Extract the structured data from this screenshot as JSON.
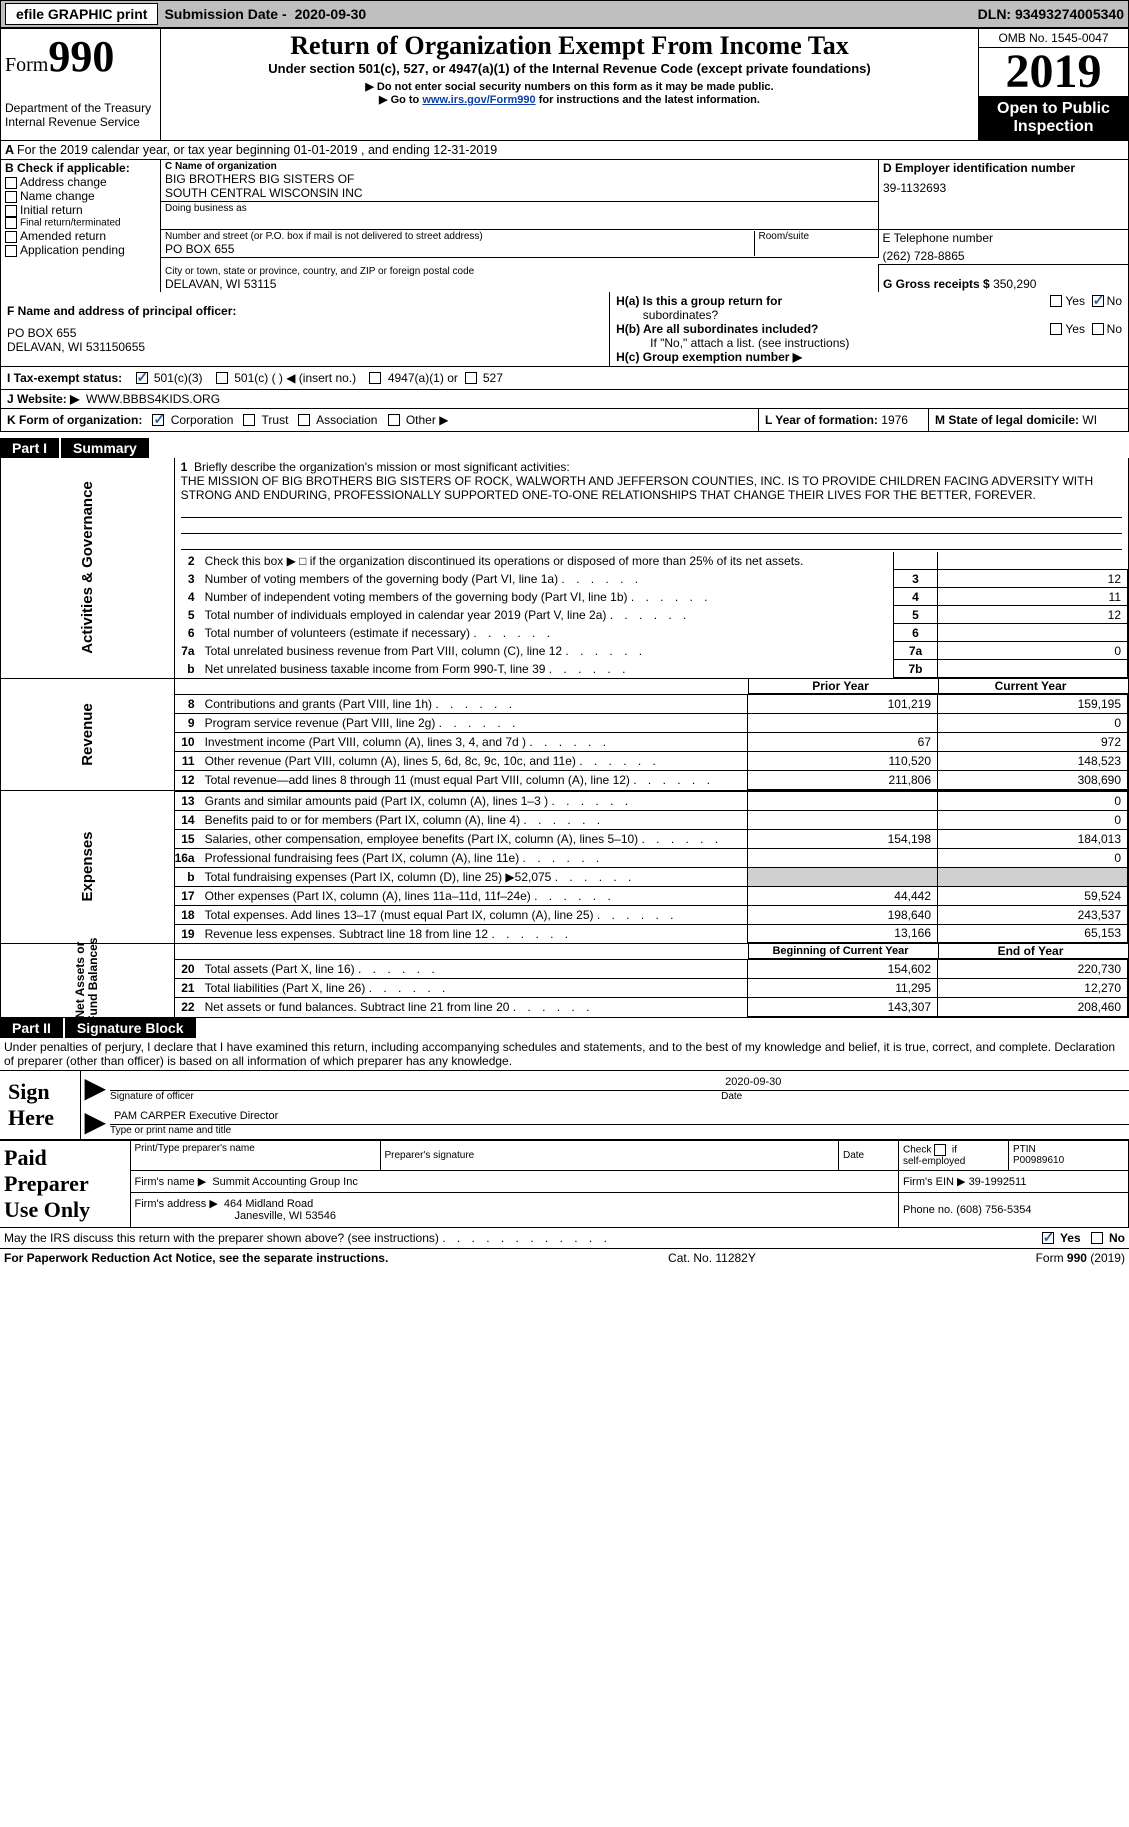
{
  "topbar": {
    "efile": "efile GRAPHIC print",
    "subm_lbl": "Submission Date -",
    "subm_val": "2020-09-30",
    "dln_lbl": "DLN:",
    "dln_val": "93493274005340"
  },
  "header": {
    "form": "Form",
    "num": "990",
    "title": "Return of Organization Exempt From Income Tax",
    "subtitle": "Under section 501(c), 527, or 4947(a)(1) of the Internal Revenue Code (except private foundations)",
    "note1": "▶ Do not enter social security numbers on this form as it may be made public.",
    "note2_pre": "▶ Go to ",
    "note2_link": "www.irs.gov/Form990",
    "note2_post": " for instructions and the latest information.",
    "dept1": "Department of the Treasury",
    "dept2": "Internal Revenue Service",
    "omb": "OMB No. 1545-0047",
    "year": "2019",
    "open1": "Open to Public",
    "open2": "Inspection"
  },
  "A": {
    "text": "For the 2019 calendar year, or tax year beginning 01-01-2019    , and ending 12-31-2019"
  },
  "B": {
    "lbl": "B Check if applicable:",
    "opts": [
      "Address change",
      "Name change",
      "Initial return",
      "Final return/terminated",
      "Amended return",
      "Application pending"
    ]
  },
  "C": {
    "name_lbl": "C Name of organization",
    "name1": "BIG BROTHERS BIG SISTERS OF",
    "name2": "SOUTH CENTRAL WISCONSIN INC",
    "dba_lbl": "Doing business as",
    "street_lbl": "Number and street (or P.O. box if mail is not delivered to street address)",
    "room_lbl": "Room/suite",
    "street": "PO BOX 655",
    "city_lbl": "City or town, state or province, country, and ZIP or foreign postal code",
    "city": "DELAVAN, WI  53115"
  },
  "D": {
    "lbl": "D Employer identification number",
    "val": "39-1132693"
  },
  "E": {
    "lbl": "E Telephone number",
    "val": "(262) 728-8865"
  },
  "G": {
    "lbl": "G Gross receipts $",
    "val": "350,290"
  },
  "F": {
    "lbl": "F  Name and address of principal officer:",
    "l1": "PO BOX 655",
    "l2": "DELAVAN, WI  531150655"
  },
  "H": {
    "a_lbl": "H(a)  Is this a group return for",
    "a_sub": "subordinates?",
    "a_yes": "Yes",
    "a_no": "No",
    "b_lbl": "H(b)  Are all subordinates included?",
    "b_yes": "Yes",
    "b_no": "No",
    "b_note": "If \"No,\" attach a list. (see instructions)",
    "c_lbl": "H(c)  Group exemption number ▶"
  },
  "I": {
    "lbl": "I    Tax-exempt status:",
    "o1": "501(c)(3)",
    "o2": "501(c) (  ) ◀ (insert no.)",
    "o3": "4947(a)(1) or",
    "o4": "527"
  },
  "J": {
    "lbl": "J   Website: ▶",
    "val": "WWW.BBBS4KIDS.ORG"
  },
  "K": {
    "lbl": "K Form of organization:",
    "o1": "Corporation",
    "o2": "Trust",
    "o3": "Association",
    "o4": "Other ▶"
  },
  "L": {
    "lbl": "L Year of formation:",
    "val": "1976"
  },
  "M": {
    "lbl": "M State of legal domicile:",
    "val": "WI"
  },
  "part1": {
    "num": "Part I",
    "title": "Summary"
  },
  "tabs": {
    "ag": "Activities & Governance",
    "rev": "Revenue",
    "exp": "Expenses",
    "na": "Net Assets or\nFund Balances"
  },
  "mission": {
    "lbl": "Briefly describe the organization's mission or most significant activities:",
    "text": "THE MISSION OF BIG BROTHERS BIG SISTERS OF ROCK, WALWORTH AND JEFFERSON COUNTIES, INC. IS TO PROVIDE CHILDREN FACING ADVERSITY WITH STRONG AND ENDURING, PROFESSIONALLY SUPPORTED ONE-TO-ONE RELATIONSHIPS THAT CHANGE THEIR LIVES FOR THE BETTER, FOREVER."
  },
  "lines_ag": [
    {
      "n": "2",
      "t": "Check this box ▶ □  if the organization discontinued its operations or disposed of more than 25% of its net assets.",
      "num": "",
      "val": ""
    },
    {
      "n": "3",
      "t": "Number of voting members of the governing body (Part VI, line 1a)",
      "num": "3",
      "val": "12"
    },
    {
      "n": "4",
      "t": "Number of independent voting members of the governing body (Part VI, line 1b)",
      "num": "4",
      "val": "11"
    },
    {
      "n": "5",
      "t": "Total number of individuals employed in calendar year 2019 (Part V, line 2a)",
      "num": "5",
      "val": "12"
    },
    {
      "n": "6",
      "t": "Total number of volunteers (estimate if necessary)",
      "num": "6",
      "val": ""
    },
    {
      "n": "7a",
      "t": "Total unrelated business revenue from Part VIII, column (C), line 12",
      "num": "7a",
      "val": "0"
    },
    {
      "n": "b",
      "t": "Net unrelated business taxable income from Form 990-T, line 39",
      "num": "7b",
      "val": ""
    }
  ],
  "col_hdr": {
    "prior": "Prior Year",
    "curr": "Current Year"
  },
  "lines_rev": [
    {
      "n": "8",
      "t": "Contributions and grants (Part VIII, line 1h)",
      "p": "101,219",
      "c": "159,195"
    },
    {
      "n": "9",
      "t": "Program service revenue (Part VIII, line 2g)",
      "p": "",
      "c": "0"
    },
    {
      "n": "10",
      "t": "Investment income (Part VIII, column (A), lines 3, 4, and 7d )",
      "p": "67",
      "c": "972"
    },
    {
      "n": "11",
      "t": "Other revenue (Part VIII, column (A), lines 5, 6d, 8c, 9c, 10c, and 11e)",
      "p": "110,520",
      "c": "148,523"
    },
    {
      "n": "12",
      "t": "Total revenue—add lines 8 through 11 (must equal Part VIII, column (A), line 12)",
      "p": "211,806",
      "c": "308,690"
    }
  ],
  "lines_exp": [
    {
      "n": "13",
      "t": "Grants and similar amounts paid (Part IX, column (A), lines 1–3 )",
      "p": "",
      "c": "0"
    },
    {
      "n": "14",
      "t": "Benefits paid to or for members (Part IX, column (A), line 4)",
      "p": "",
      "c": "0"
    },
    {
      "n": "15",
      "t": "Salaries, other compensation, employee benefits (Part IX, column (A), lines 5–10)",
      "p": "154,198",
      "c": "184,013"
    },
    {
      "n": "16a",
      "t": "Professional fundraising fees (Part IX, column (A), line 11e)",
      "p": "",
      "c": "0"
    },
    {
      "n": "b",
      "t": "Total fundraising expenses (Part IX, column (D), line 25) ▶52,075",
      "p": "SHADE",
      "c": "SHADE"
    },
    {
      "n": "17",
      "t": "Other expenses (Part IX, column (A), lines 11a–11d, 11f–24e)",
      "p": "44,442",
      "c": "59,524"
    },
    {
      "n": "18",
      "t": "Total expenses. Add lines 13–17 (must equal Part IX, column (A), line 25)",
      "p": "198,640",
      "c": "243,537"
    },
    {
      "n": "19",
      "t": "Revenue less expenses. Subtract line 18 from line 12",
      "p": "13,166",
      "c": "65,153"
    }
  ],
  "col_hdr2": {
    "beg": "Beginning of Current Year",
    "end": "End of Year"
  },
  "lines_na": [
    {
      "n": "20",
      "t": "Total assets (Part X, line 16)",
      "p": "154,602",
      "c": "220,730"
    },
    {
      "n": "21",
      "t": "Total liabilities (Part X, line 26)",
      "p": "11,295",
      "c": "12,270"
    },
    {
      "n": "22",
      "t": "Net assets or fund balances. Subtract line 21 from line 20",
      "p": "143,307",
      "c": "208,460"
    }
  ],
  "part2": {
    "num": "Part II",
    "title": "Signature Block"
  },
  "perjury": "Under penalties of perjury, I declare that I have examined this return, including accompanying schedules and statements, and to the best of my knowledge and belief, it is true, correct, and complete. Declaration of preparer (other than officer) is based on all information of which preparer has any knowledge.",
  "sign": {
    "lbl1": "Sign",
    "lbl2": "Here",
    "sig_lbl": "Signature of officer",
    "date_lbl": "Date",
    "date": "2020-09-30",
    "name": "PAM CARPER  Executive Director",
    "name_lbl": "Type or print name and title"
  },
  "prep": {
    "lbl1": "Paid",
    "lbl2": "Preparer",
    "lbl3": "Use Only",
    "h1": "Print/Type preparer's name",
    "h2": "Preparer's signature",
    "h3": "Date",
    "h4_1": "Check",
    "h4_2": "if",
    "h4_3": "self-employed",
    "ptin_lbl": "PTIN",
    "ptin": "P00989610",
    "firm_lbl": "Firm's name    ▶",
    "firm": "Summit Accounting Group Inc",
    "ein_lbl": "Firm's EIN ▶",
    "ein": "39-1992511",
    "addr_lbl": "Firm's address ▶",
    "addr1": "464 Midland Road",
    "addr2": "Janesville, WI  53546",
    "phone_lbl": "Phone no.",
    "phone": "(608) 756-5354"
  },
  "discuss": {
    "t": "May the IRS discuss this return with the preparer shown above? (see instructions)",
    "yes": "Yes",
    "no": "No"
  },
  "footer": {
    "l": "For Paperwork Reduction Act Notice, see the separate instructions.",
    "m": "Cat. No. 11282Y",
    "r": "Form 990 (2019)"
  }
}
